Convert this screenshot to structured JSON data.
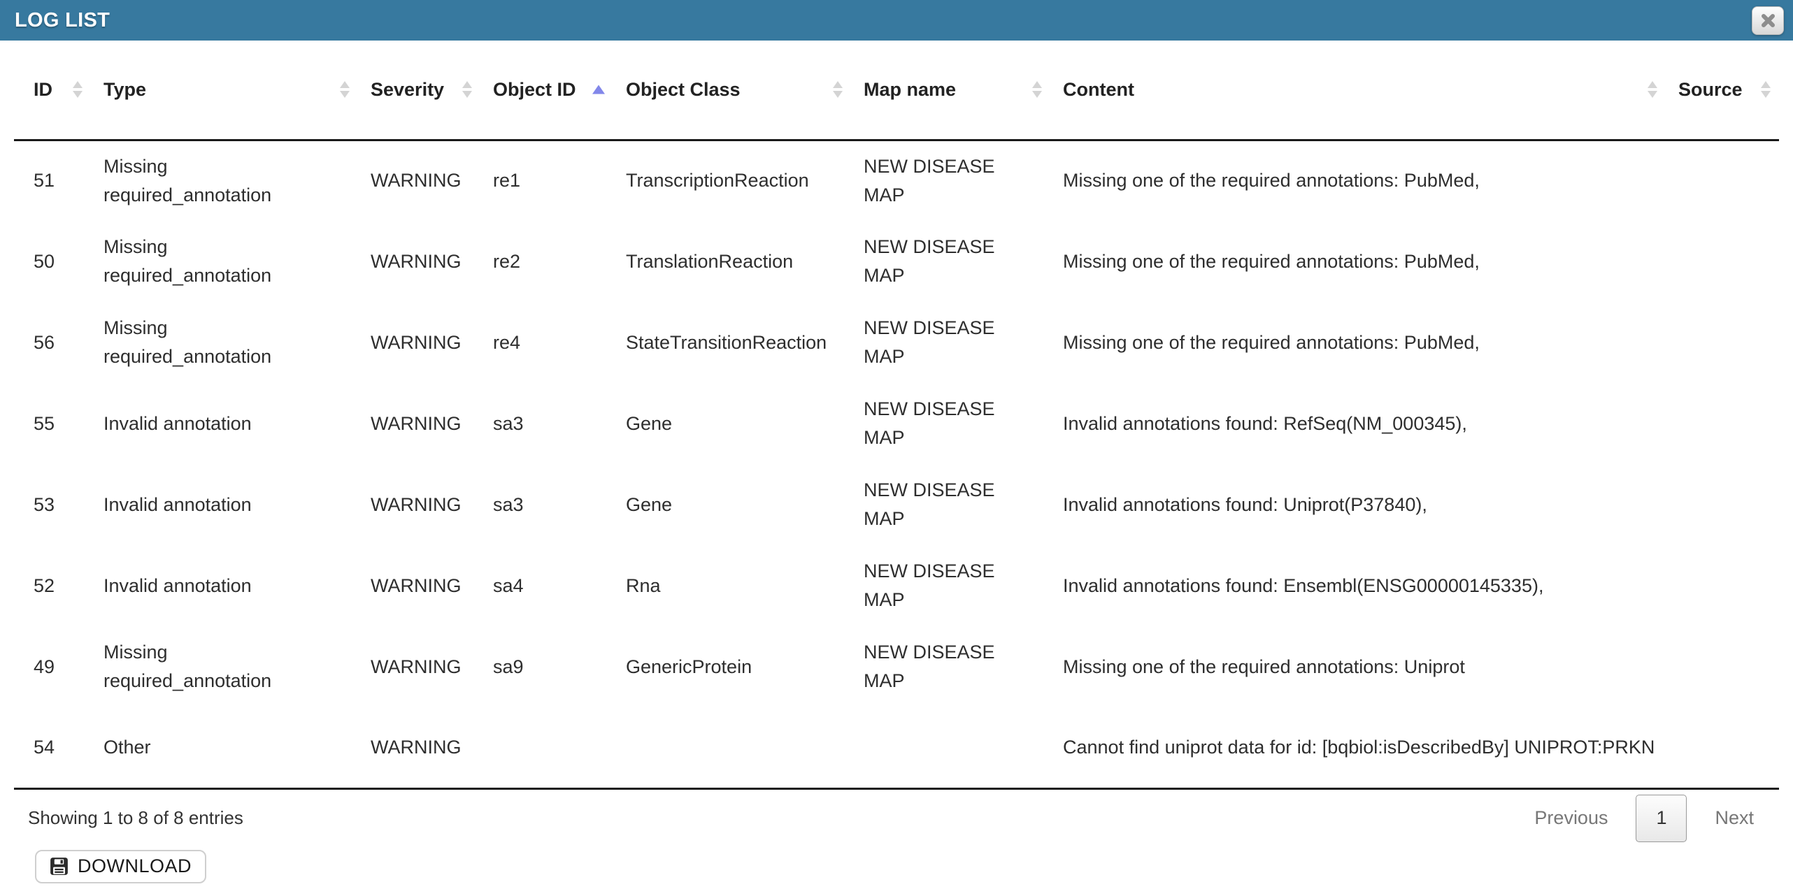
{
  "titlebar": {
    "title": "LOG LIST",
    "close_icon": "x-mark",
    "background_color": "#37799F"
  },
  "table": {
    "columns": [
      {
        "key": "id",
        "label": "ID",
        "sort": "both"
      },
      {
        "key": "type",
        "label": "Type",
        "sort": "both"
      },
      {
        "key": "severity",
        "label": "Severity",
        "sort": "both"
      },
      {
        "key": "object_id",
        "label": "Object ID",
        "sort": "asc"
      },
      {
        "key": "object_class",
        "label": "Object Class",
        "sort": "both"
      },
      {
        "key": "map_name",
        "label": "Map name",
        "sort": "both"
      },
      {
        "key": "content",
        "label": "Content",
        "sort": "both"
      },
      {
        "key": "source",
        "label": "Source",
        "sort": "both"
      }
    ],
    "rows": [
      {
        "id": "51",
        "type": "Missing required_annotation",
        "severity": "WARNING",
        "object_id": "re1",
        "object_class": "TranscriptionReaction",
        "map_name": "NEW DISEASE MAP",
        "content": "Missing one of the required annotations: PubMed,",
        "source": ""
      },
      {
        "id": "50",
        "type": "Missing required_annotation",
        "severity": "WARNING",
        "object_id": "re2",
        "object_class": "TranslationReaction",
        "map_name": "NEW DISEASE MAP",
        "content": "Missing one of the required annotations: PubMed,",
        "source": ""
      },
      {
        "id": "56",
        "type": "Missing required_annotation",
        "severity": "WARNING",
        "object_id": "re4",
        "object_class": "StateTransitionReaction",
        "map_name": "NEW DISEASE MAP",
        "content": "Missing one of the required annotations: PubMed,",
        "source": ""
      },
      {
        "id": "55",
        "type": "Invalid annotation",
        "severity": "WARNING",
        "object_id": "sa3",
        "object_class": "Gene",
        "map_name": "NEW DISEASE MAP",
        "content": "Invalid annotations found: RefSeq(NM_000345),",
        "source": ""
      },
      {
        "id": "53",
        "type": "Invalid annotation",
        "severity": "WARNING",
        "object_id": "sa3",
        "object_class": "Gene",
        "map_name": "NEW DISEASE MAP",
        "content": "Invalid annotations found: Uniprot(P37840),",
        "source": ""
      },
      {
        "id": "52",
        "type": "Invalid annotation",
        "severity": "WARNING",
        "object_id": "sa4",
        "object_class": "Rna",
        "map_name": "NEW DISEASE MAP",
        "content": "Invalid annotations found: Ensembl(ENSG00000145335),",
        "source": ""
      },
      {
        "id": "49",
        "type": "Missing required_annotation",
        "severity": "WARNING",
        "object_id": "sa9",
        "object_class": "GenericProtein",
        "map_name": "NEW DISEASE MAP",
        "content": "Missing one of the required annotations: Uniprot",
        "source": ""
      },
      {
        "id": "54",
        "type": "Other",
        "severity": "WARNING",
        "object_id": "",
        "object_class": "",
        "map_name": "",
        "content": "Cannot find uniprot data for id: [bqbiol:isDescribedBy] UNIPROT:PRKN",
        "source": ""
      }
    ]
  },
  "footer": {
    "showing_text": "Showing 1 to 8 of 8 entries",
    "pagination": {
      "previous_label": "Previous",
      "current_page": "1",
      "next_label": "Next"
    },
    "download_label": "DOWNLOAD",
    "download_icon": "floppy-disk"
  },
  "colors": {
    "titlebar_bg": "#37799F",
    "sort_active": "#8287EA",
    "sort_inactive": "#D4D4D4",
    "body_text": "#2E2E2E",
    "pagination_text": "#777777"
  }
}
